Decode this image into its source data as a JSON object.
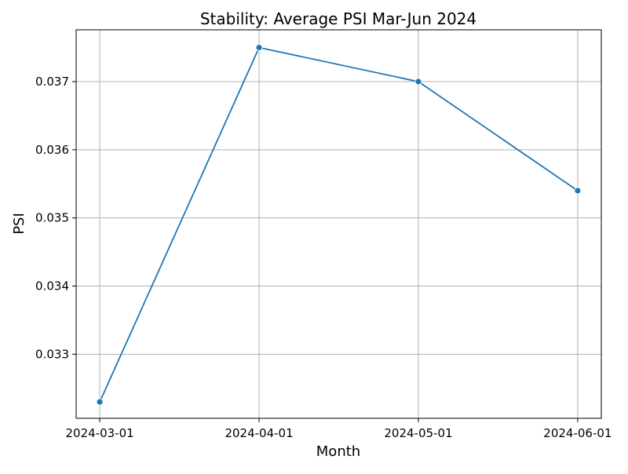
{
  "chart_data": {
    "type": "line",
    "title": "Stability: Average PSI Mar-Jun 2024",
    "xlabel": "Month",
    "ylabel": "PSI",
    "x": [
      "2024-03-01",
      "2024-04-01",
      "2024-05-01",
      "2024-06-01"
    ],
    "series": [
      {
        "values": [
          0.0323,
          0.0375,
          0.037,
          0.0354
        ],
        "color": "#1f77b4",
        "marker": "circle"
      }
    ],
    "x_ticks": [
      "2024-03-01",
      "2024-04-01",
      "2024-05-01",
      "2024-06-01"
    ],
    "y_ticks": [
      0.033,
      0.034,
      0.035,
      0.036,
      0.037
    ],
    "y_tick_labels": [
      "0.033",
      "0.034",
      "0.035",
      "0.036",
      "0.037"
    ],
    "ylim": [
      0.03206,
      0.03776
    ],
    "grid": true,
    "legend": "none"
  }
}
